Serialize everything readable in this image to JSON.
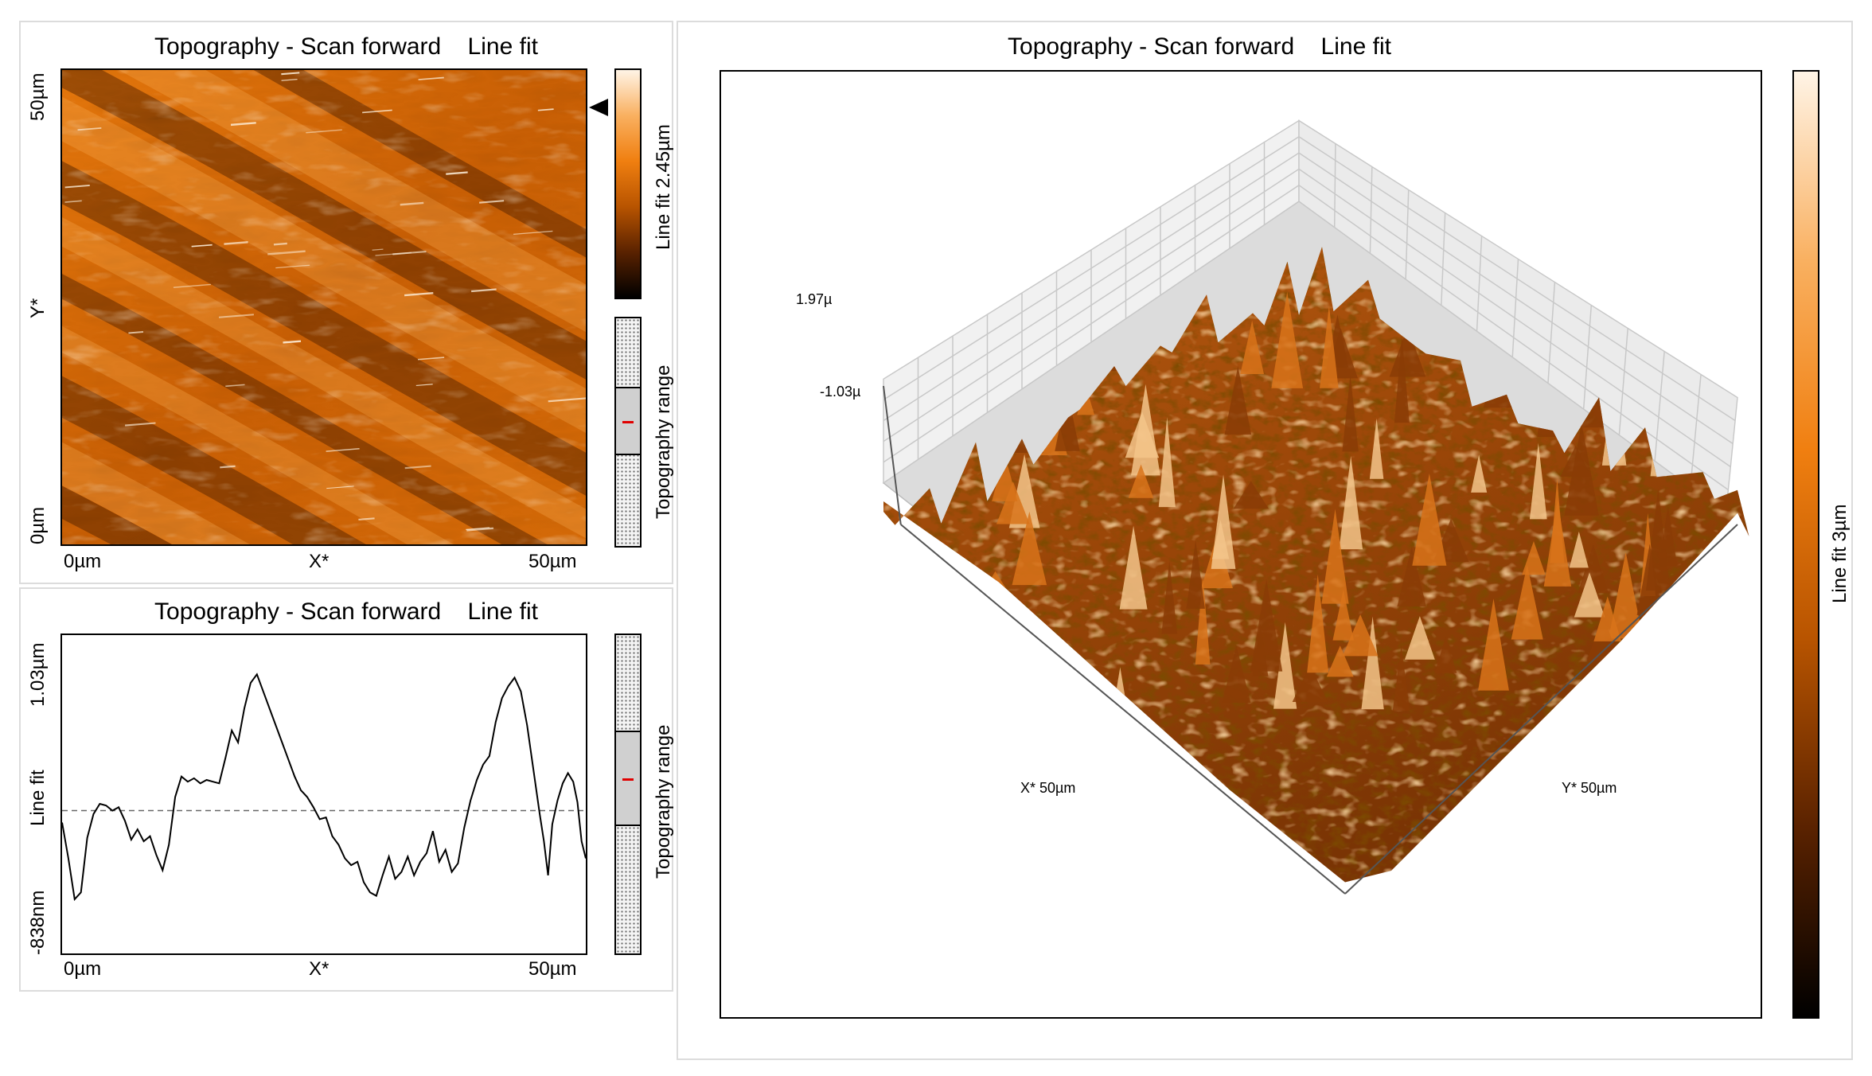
{
  "chart_data": [
    {
      "type": "heatmap",
      "title": "Topography - Scan forward    Line fit",
      "xlabel": "X*",
      "ylabel": "Y*",
      "x_ticks": [
        "0µm",
        "50µm"
      ],
      "y_ticks": [
        "0µm",
        "50µm"
      ],
      "colorbar_label": "Line fit 2.45µm",
      "range_label": "Topography range",
      "colorscale": [
        "#000000",
        "#5a2200",
        "#b85400",
        "#f07f10",
        "#f9b060",
        "#fff4e6"
      ],
      "line_marker_fraction": 0.83,
      "range_window": [
        0.3,
        0.6
      ],
      "range_current": 0.45
    },
    {
      "type": "line",
      "title": "Topography - Scan forward    Line fit",
      "xlabel": "X*",
      "ylabel": "Line fit",
      "x_ticks": [
        "0µm",
        "50µm"
      ],
      "y_ticks": [
        "-838nm",
        "1.03µm"
      ],
      "xlim": [
        0,
        50
      ],
      "ylim": [
        -838,
        1030
      ],
      "baseline": 0,
      "range_label": "Topography range",
      "range_window": [
        0.3,
        0.6
      ],
      "range_current": 0.45,
      "x": [
        0,
        0.6,
        1.2,
        1.8,
        2.4,
        3.0,
        3.6,
        4.2,
        4.8,
        5.4,
        6.0,
        6.6,
        7.2,
        7.8,
        8.4,
        9.0,
        9.6,
        10.2,
        10.8,
        11.4,
        12.0,
        12.6,
        13.2,
        13.8,
        14.4,
        15.0,
        15.6,
        16.2,
        16.8,
        17.4,
        18.0,
        18.6,
        19.2,
        19.8,
        20.4,
        21.0,
        21.6,
        22.2,
        22.8,
        23.4,
        24.0,
        24.6,
        25.2,
        25.8,
        26.4,
        27.0,
        27.6,
        28.2,
        28.8,
        29.4,
        30.0,
        30.6,
        31.2,
        31.8,
        32.4,
        33.0,
        33.6,
        34.2,
        34.8,
        35.4,
        36.0,
        36.6,
        37.2,
        37.8,
        38.4,
        39.0,
        39.6,
        40.2,
        40.8,
        41.4,
        42.0,
        42.6,
        43.2,
        43.8,
        44.4,
        45.0,
        45.6,
        46.0,
        46.4,
        46.8,
        47.3,
        47.8,
        48.3,
        48.8,
        49.2,
        49.6,
        50.0
      ],
      "y": [
        -70,
        -280,
        -520,
        -480,
        -160,
        -20,
        40,
        30,
        0,
        20,
        -60,
        -170,
        -110,
        -180,
        -150,
        -260,
        -350,
        -200,
        80,
        200,
        170,
        190,
        160,
        180,
        170,
        160,
        310,
        470,
        400,
        600,
        750,
        800,
        700,
        600,
        500,
        400,
        300,
        200,
        120,
        80,
        20,
        -50,
        -40,
        -150,
        -200,
        -280,
        -320,
        -300,
        -420,
        -480,
        -500,
        -380,
        -270,
        -400,
        -360,
        -270,
        -380,
        -300,
        -250,
        -120,
        -300,
        -230,
        -360,
        -310,
        -100,
        60,
        180,
        270,
        320,
        520,
        660,
        730,
        780,
        700,
        500,
        240,
        -20,
        -180,
        -380,
        -80,
        60,
        160,
        220,
        170,
        50,
        -180,
        -280
      ]
    },
    {
      "type": "surface",
      "title": "Topography - Scan forward    Line fit",
      "xlabel": "X* 50µm",
      "ylabel": "Y* 50µm",
      "zlim_labels": [
        "1.97µ",
        "-1.03µ"
      ],
      "colorbar_label": "Line fit 3µm",
      "colorscale": [
        "#000000",
        "#5a2200",
        "#b85400",
        "#f07f10",
        "#f9b060",
        "#fff4e6"
      ]
    }
  ]
}
